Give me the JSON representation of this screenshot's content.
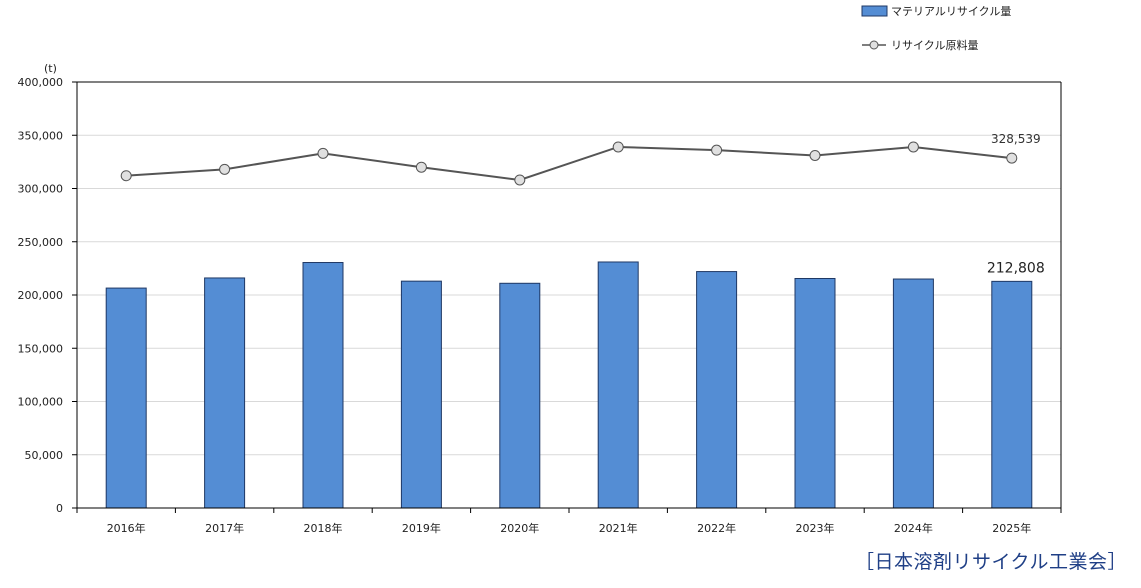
{
  "chart_data": {
    "type": "bar",
    "categories": [
      "2016年",
      "2017年",
      "2018年",
      "2019年",
      "2020年",
      "2021年",
      "2022年",
      "2023年",
      "2024年",
      "2025年"
    ],
    "series": [
      {
        "name": "マテリアルリサイクル量",
        "type": "bar",
        "color": "#548dd4",
        "values": [
          206500,
          216000,
          230500,
          213000,
          211000,
          231000,
          222000,
          215500,
          215000,
          212808
        ]
      },
      {
        "name": "リサイクル原料量",
        "type": "line",
        "color": "#555555",
        "marker_fill": "#e0e0e0",
        "values": [
          312000,
          318000,
          333000,
          320000,
          308000,
          339000,
          336000,
          331000,
          339000,
          328539
        ]
      }
    ],
    "ylabel": "(t)",
    "ylim": [
      0,
      400000
    ],
    "yticks": [
      0,
      50000,
      100000,
      150000,
      200000,
      250000,
      300000,
      350000,
      400000
    ],
    "ytick_labels": [
      "0",
      "50,000",
      "100,000",
      "150,000",
      "200,000",
      "250,000",
      "300,000",
      "350,000",
      "400,000"
    ],
    "grid": true,
    "legend_position": "top-right",
    "data_labels": [
      {
        "series": "リサイクル原料量",
        "category": "2025年",
        "text": "328,539"
      },
      {
        "series": "マテリアルリサイクル量",
        "category": "2025年",
        "text": "212,808"
      }
    ]
  },
  "source": "［日本溶剤リサイクル工業会］"
}
